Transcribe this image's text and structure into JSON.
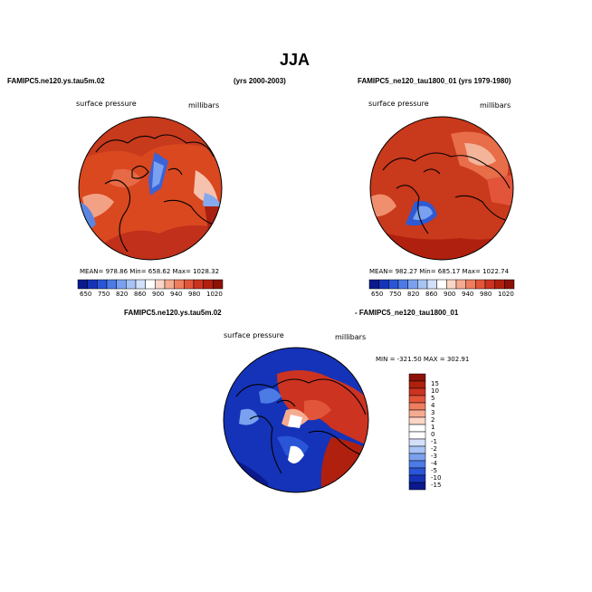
{
  "title": "JJA",
  "panel1": {
    "header_left": "FAMIPC5.ne120.ys.tau5m.02",
    "header_right": "(yrs 2000-2003)",
    "field": "surface pressure",
    "units": "millibars",
    "stats": "MEAN= 978.86   Min= 658.62   Max= 1028.32"
  },
  "panel2": {
    "header": "FAMIPC5_ne120_tau1800_01 (yrs 1979-1980)",
    "field": "surface pressure",
    "units": "millibars",
    "stats": "MEAN= 982.27   Min= 685.17   Max= 1022.74"
  },
  "panel3": {
    "header_left": "FAMIPC5.ne120.ys.tau5m.02",
    "header_right": "- FAMIPC5_ne120_tau1800_01",
    "field": "surface pressure",
    "units": "millibars",
    "stats": "MIN = -321.50  MAX = 302.91"
  },
  "colorbar_main": {
    "labels": [
      "650",
      "750",
      "820",
      "860",
      "900",
      "940",
      "980",
      "1020"
    ],
    "colors": [
      "#0a1a8c",
      "#1533b8",
      "#2a55d6",
      "#4d7be6",
      "#7aa1ef",
      "#a8c4f5",
      "#d2e1f9",
      "#ffffff",
      "#fbd6c6",
      "#f5ab90",
      "#ee7e5d",
      "#e2553a",
      "#cc3320",
      "#b0200f",
      "#8c1208"
    ]
  },
  "colorbar_diff": {
    "labels": [
      "15",
      "10",
      "5",
      "4",
      "3",
      "2",
      "1",
      "0",
      "-1",
      "-2",
      "-3",
      "-4",
      "-5",
      "-10",
      "-15"
    ],
    "colors": [
      "#8c1208",
      "#b0200f",
      "#cc3320",
      "#e2553a",
      "#ee7e5d",
      "#f5ab90",
      "#fbd6c6",
      "#ffffff",
      "#ffffff",
      "#d2e1f9",
      "#a8c4f5",
      "#7aa1ef",
      "#4d7be6",
      "#2a55d6",
      "#1533b8",
      "#0a1a8c"
    ]
  }
}
